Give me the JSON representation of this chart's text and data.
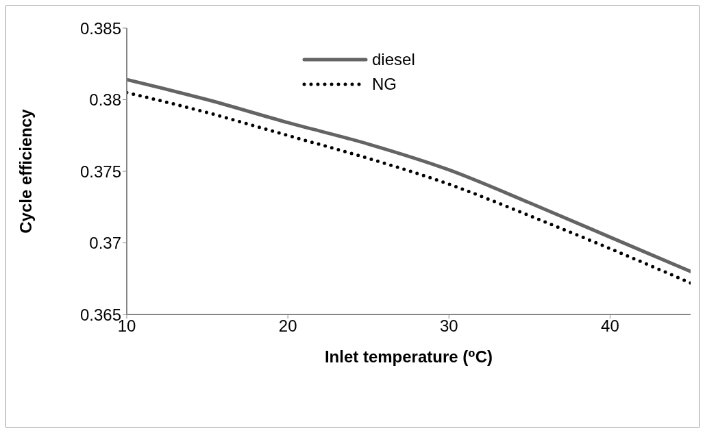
{
  "chart_data": {
    "type": "line",
    "xlabel": "Inlet temperature (⁰C)",
    "ylabel": "Cycle efficiency",
    "x": [
      10,
      15,
      20,
      25,
      30,
      35,
      40,
      45
    ],
    "series": [
      {
        "name": "diesel",
        "color": "#646464",
        "line_style": "solid",
        "values": [
          0.3814,
          0.38,
          0.3784,
          0.3769,
          0.3751,
          0.3728,
          0.3704,
          0.368
        ]
      },
      {
        "name": "NG",
        "color": "#000000",
        "line_style": "dotted",
        "values": [
          0.3805,
          0.3791,
          0.3775,
          0.3759,
          0.3741,
          0.3719,
          0.3696,
          0.3672
        ]
      }
    ],
    "xlim": [
      10,
      45
    ],
    "xticks": [
      10,
      20,
      30,
      40
    ],
    "ylim": [
      0.365,
      0.385
    ],
    "yticks": [
      0.365,
      0.37,
      0.375,
      0.38,
      0.385
    ],
    "grid": false,
    "legend": "top",
    "marker": "none"
  }
}
